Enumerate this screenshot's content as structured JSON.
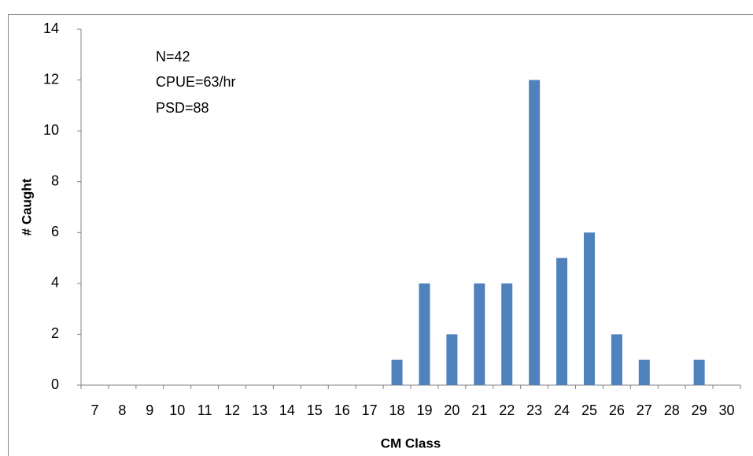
{
  "chart_data": {
    "type": "bar",
    "categories": [
      "7",
      "8",
      "9",
      "10",
      "11",
      "12",
      "13",
      "14",
      "15",
      "16",
      "17",
      "18",
      "19",
      "20",
      "21",
      "22",
      "23",
      "24",
      "25",
      "26",
      "27",
      "28",
      "29",
      "30"
    ],
    "values": [
      0,
      0,
      0,
      0,
      0,
      0,
      0,
      0,
      0,
      0,
      0,
      1,
      4,
      2,
      4,
      4,
      12,
      5,
      6,
      2,
      1,
      0,
      1,
      0
    ],
    "color": "#4f81bd",
    "ylim": [
      0,
      14
    ],
    "yticks": [
      0,
      2,
      4,
      6,
      8,
      10,
      12,
      14
    ],
    "ylabel": "# Caught",
    "xlabel": "CM Class",
    "annotations": [
      "N=42",
      "CPUE=63/hr",
      "PSD=88"
    ],
    "grid": false
  }
}
